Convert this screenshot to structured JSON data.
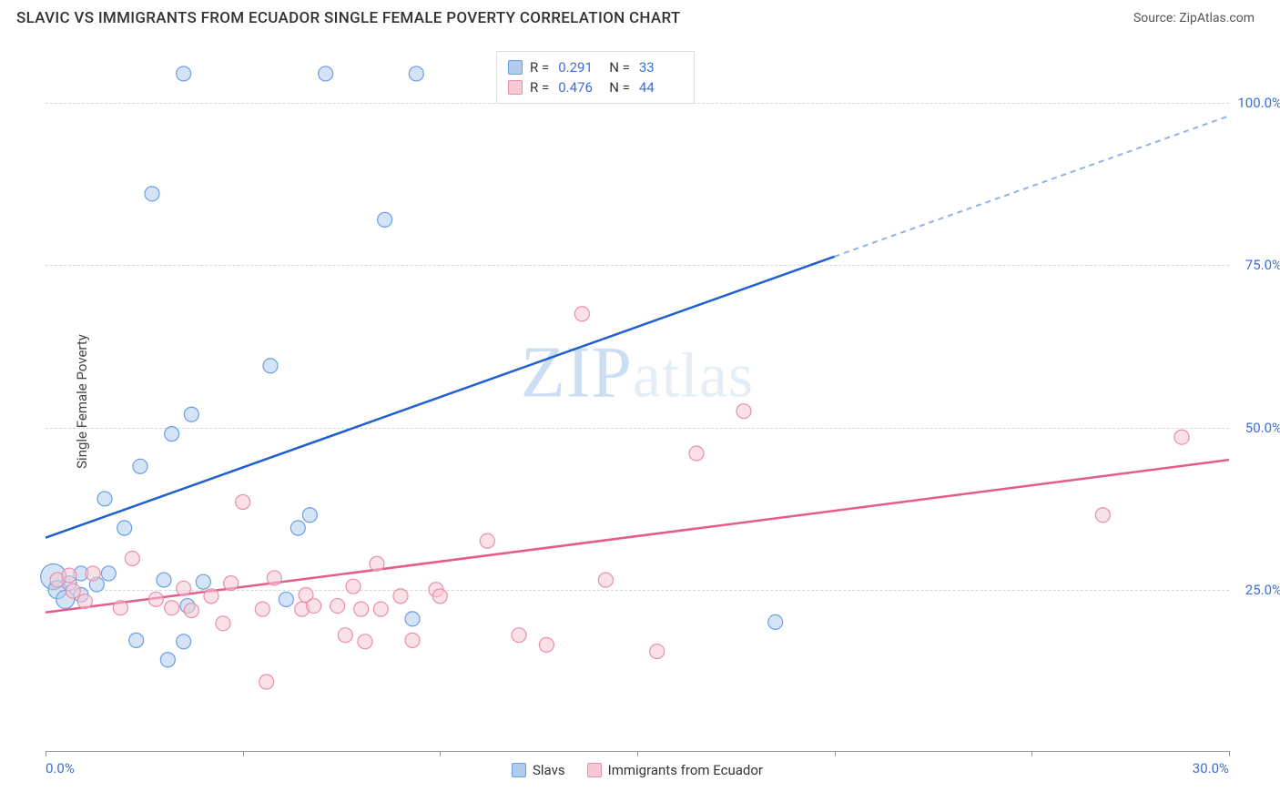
{
  "title": "SLAVIC VS IMMIGRANTS FROM ECUADOR SINGLE FEMALE POVERTY CORRELATION CHART",
  "source_label": "Source: ZipAtlas.com",
  "watermark": "ZIPatlas",
  "chart": {
    "type": "scatter",
    "xlim": [
      0,
      30
    ],
    "ylim": [
      0,
      108
    ],
    "ylabel": "Single Female Poverty",
    "x_ticks": [
      0,
      5,
      10,
      15,
      20,
      25,
      30
    ],
    "x_tick_labels": [
      "0.0%",
      "",
      "",
      "",
      "",
      "",
      "30.0%"
    ],
    "y_ticks": [
      25,
      50,
      75,
      100
    ],
    "y_tick_labels": [
      "25.0%",
      "50.0%",
      "75.0%",
      "100.0%"
    ],
    "background_color": "#ffffff",
    "grid_color": "#d6d6d6",
    "axis_color": "#999999",
    "tick_label_color": "#3b6fd6",
    "series": [
      {
        "name": "Slavs",
        "marker_color_fill": "#b0cdef",
        "marker_color_stroke": "#6a9fe0",
        "line_color": "#1f5fd0",
        "line_color_dash": "#8fb3e8",
        "marker_radius": 8,
        "R": "0.291",
        "N": "33",
        "trend": {
          "x1": 0,
          "y1": 33,
          "x2": 30,
          "y2": 98,
          "split_x": 20
        },
        "points": [
          {
            "x": 0.2,
            "y": 27,
            "r": 14
          },
          {
            "x": 0.3,
            "y": 25,
            "r": 10
          },
          {
            "x": 0.5,
            "y": 23.5,
            "r": 10
          },
          {
            "x": 0.6,
            "y": 26,
            "r": 8
          },
          {
            "x": 0.9,
            "y": 27.5,
            "r": 8
          },
          {
            "x": 0.9,
            "y": 24.2,
            "r": 8
          },
          {
            "x": 1.3,
            "y": 25.8,
            "r": 8
          },
          {
            "x": 1.5,
            "y": 39,
            "r": 8
          },
          {
            "x": 1.6,
            "y": 27.5,
            "r": 8
          },
          {
            "x": 2.0,
            "y": 34.5,
            "r": 8
          },
          {
            "x": 2.3,
            "y": 17.2,
            "r": 8
          },
          {
            "x": 2.4,
            "y": 44,
            "r": 8
          },
          {
            "x": 2.7,
            "y": 86,
            "r": 8
          },
          {
            "x": 3.0,
            "y": 26.5,
            "r": 8
          },
          {
            "x": 3.1,
            "y": 14.2,
            "r": 8
          },
          {
            "x": 3.2,
            "y": 49,
            "r": 8
          },
          {
            "x": 3.5,
            "y": 17,
            "r": 8
          },
          {
            "x": 3.5,
            "y": 104.5,
            "r": 8
          },
          {
            "x": 3.6,
            "y": 22.5,
            "r": 8
          },
          {
            "x": 3.7,
            "y": 52,
            "r": 8
          },
          {
            "x": 4.0,
            "y": 26.2,
            "r": 8
          },
          {
            "x": 5.7,
            "y": 59.5,
            "r": 8
          },
          {
            "x": 6.1,
            "y": 23.5,
            "r": 8
          },
          {
            "x": 6.4,
            "y": 34.5,
            "r": 8
          },
          {
            "x": 6.7,
            "y": 36.5,
            "r": 8
          },
          {
            "x": 7.1,
            "y": 104.5,
            "r": 8
          },
          {
            "x": 8.6,
            "y": 82,
            "r": 8
          },
          {
            "x": 9.3,
            "y": 20.5,
            "r": 8
          },
          {
            "x": 9.4,
            "y": 104.5,
            "r": 8
          },
          {
            "x": 18.5,
            "y": 20,
            "r": 8
          }
        ]
      },
      {
        "name": "Immigrants from Ecuador",
        "marker_color_fill": "#f6c8d4",
        "marker_color_stroke": "#ea8fa8",
        "line_color": "#e75a8c",
        "marker_radius": 8,
        "R": "0.476",
        "N": "44",
        "trend": {
          "x1": 0,
          "y1": 21.5,
          "x2": 30,
          "y2": 45
        },
        "points": [
          {
            "x": 0.3,
            "y": 26.5,
            "r": 8
          },
          {
            "x": 0.6,
            "y": 27.2,
            "r": 8
          },
          {
            "x": 0.7,
            "y": 24.8,
            "r": 8
          },
          {
            "x": 1.0,
            "y": 23.2,
            "r": 8
          },
          {
            "x": 1.2,
            "y": 27.5,
            "r": 8
          },
          {
            "x": 1.9,
            "y": 22.2,
            "r": 8
          },
          {
            "x": 2.2,
            "y": 29.8,
            "r": 8
          },
          {
            "x": 2.8,
            "y": 23.5,
            "r": 8
          },
          {
            "x": 3.2,
            "y": 22.2,
            "r": 8
          },
          {
            "x": 3.5,
            "y": 25.2,
            "r": 8
          },
          {
            "x": 3.7,
            "y": 21.8,
            "r": 8
          },
          {
            "x": 4.2,
            "y": 24.0,
            "r": 8
          },
          {
            "x": 4.5,
            "y": 19.8,
            "r": 8
          },
          {
            "x": 4.7,
            "y": 26.0,
            "r": 8
          },
          {
            "x": 5.0,
            "y": 38.5,
            "r": 8
          },
          {
            "x": 5.5,
            "y": 22.0,
            "r": 8
          },
          {
            "x": 5.6,
            "y": 10.8,
            "r": 8
          },
          {
            "x": 5.8,
            "y": 26.8,
            "r": 8
          },
          {
            "x": 6.5,
            "y": 22.0,
            "r": 8
          },
          {
            "x": 6.6,
            "y": 24.2,
            "r": 8
          },
          {
            "x": 6.8,
            "y": 22.5,
            "r": 8
          },
          {
            "x": 7.4,
            "y": 22.5,
            "r": 8
          },
          {
            "x": 7.6,
            "y": 18.0,
            "r": 8
          },
          {
            "x": 7.8,
            "y": 25.5,
            "r": 8
          },
          {
            "x": 8.0,
            "y": 22.0,
            "r": 8
          },
          {
            "x": 8.1,
            "y": 17.0,
            "r": 8
          },
          {
            "x": 8.4,
            "y": 29.0,
            "r": 8
          },
          {
            "x": 8.5,
            "y": 22.0,
            "r": 8
          },
          {
            "x": 9.0,
            "y": 24.0,
            "r": 8
          },
          {
            "x": 9.3,
            "y": 17.2,
            "r": 8
          },
          {
            "x": 9.9,
            "y": 25.0,
            "r": 8
          },
          {
            "x": 10.0,
            "y": 24.0,
            "r": 8
          },
          {
            "x": 11.2,
            "y": 32.5,
            "r": 8
          },
          {
            "x": 12.0,
            "y": 18.0,
            "r": 8
          },
          {
            "x": 12.7,
            "y": 16.5,
            "r": 8
          },
          {
            "x": 13.6,
            "y": 67.5,
            "r": 8
          },
          {
            "x": 14.2,
            "y": 26.5,
            "r": 8
          },
          {
            "x": 15.5,
            "y": 15.5,
            "r": 8
          },
          {
            "x": 16.5,
            "y": 46.0,
            "r": 8
          },
          {
            "x": 17.7,
            "y": 52.5,
            "r": 8
          },
          {
            "x": 26.8,
            "y": 36.5,
            "r": 8
          },
          {
            "x": 28.8,
            "y": 48.5,
            "r": 8
          }
        ]
      }
    ]
  }
}
